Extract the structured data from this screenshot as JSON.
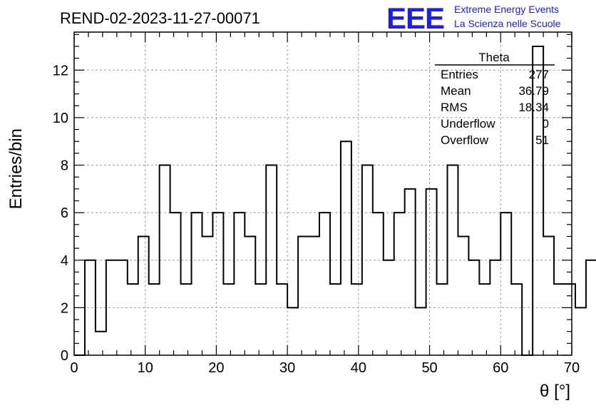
{
  "chart_data": {
    "type": "bar",
    "title": "REND-02-2023-11-27-00071",
    "xlabel": "θ [°]",
    "ylabel": "Entries/bin",
    "xlim": [
      0,
      70
    ],
    "ylim": [
      0,
      13.6
    ],
    "bin_width": 1.5,
    "bin_start": 0,
    "x_ticks": [
      0,
      10,
      20,
      30,
      40,
      50,
      60,
      70
    ],
    "y_ticks": [
      0,
      2,
      4,
      6,
      8,
      10,
      12
    ],
    "values": [
      0,
      4,
      1,
      4,
      4,
      3,
      5,
      3,
      8,
      6,
      3,
      6,
      5,
      6,
      3,
      6,
      5,
      3,
      8,
      3,
      2,
      5,
      5,
      6,
      3,
      9,
      3,
      8,
      6,
      4,
      6,
      7,
      2,
      7,
      3,
      8,
      5,
      4,
      3,
      4,
      6,
      3,
      0,
      13,
      5,
      3,
      3,
      2,
      4
    ],
    "grid": true
  },
  "stats_box": {
    "name": "Theta",
    "rows": [
      {
        "label": "Entries",
        "value": "277"
      },
      {
        "label": "Mean",
        "value": "36.79"
      },
      {
        "label": "RMS",
        "value": "18.34"
      },
      {
        "label": "Underflow",
        "value": "0"
      },
      {
        "label": "Overflow",
        "value": "51"
      }
    ]
  },
  "logo": {
    "letters": "EEE",
    "line1": "Extreme Energy Events",
    "line2": "La Scienza nelle Scuole",
    "color": "#1e1ee6"
  }
}
